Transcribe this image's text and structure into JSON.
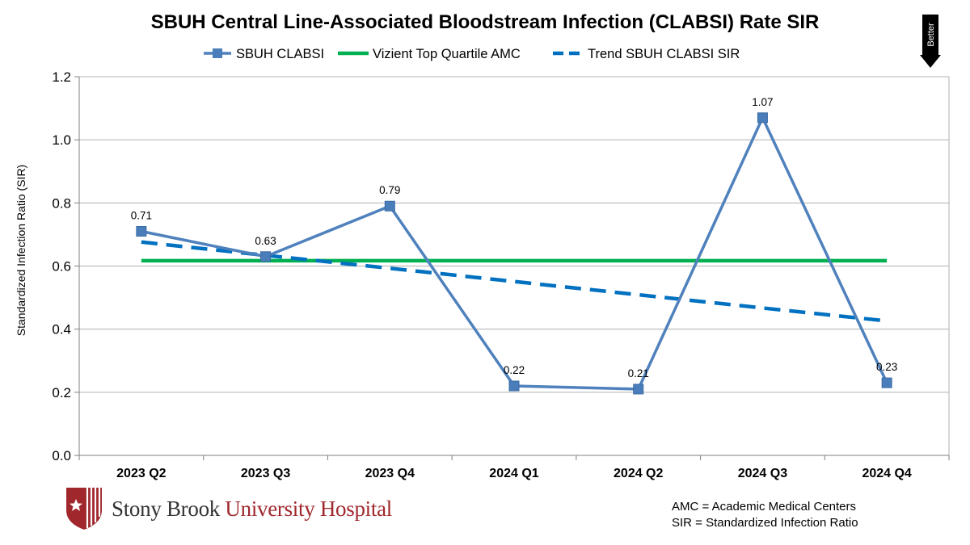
{
  "title": "SBUH Central Line-Associated Bloodstream Infection (CLABSI) Rate SIR",
  "better_label": "Better",
  "legend": {
    "series": "SBUH CLABSI",
    "benchmark": "Vizient Top Quartile AMC",
    "trend": "Trend SBUH CLABSI SIR"
  },
  "footnotes": [
    "AMC = Academic Medical Centers",
    "SIR = Standardized Infection Ratio"
  ],
  "logo": {
    "part1": "Stony Brook ",
    "part2": "University Hospital"
  },
  "colors": {
    "series": "#4f81bd",
    "series_marker": "#4a7ebb",
    "benchmark": "#00b050",
    "trend": "#0070c0",
    "brand_red": "#a0282d"
  },
  "chart_data": {
    "type": "line",
    "title": "SBUH Central Line-Associated Bloodstream Infection (CLABSI) Rate SIR",
    "xlabel": "",
    "ylabel": "Standardized Infection Ratio (SIR)",
    "categories": [
      "2023 Q2",
      "2023 Q3",
      "2023 Q4",
      "2024 Q1",
      "2024 Q2",
      "2024 Q3",
      "2024 Q4"
    ],
    "ylim": [
      0,
      1.2
    ],
    "yticks": [
      "0.0",
      "0.2",
      "0.4",
      "0.6",
      "0.8",
      "1.0",
      "1.2"
    ],
    "series": [
      {
        "name": "SBUH CLABSI",
        "values": [
          0.71,
          0.63,
          0.79,
          0.22,
          0.21,
          1.07,
          0.23
        ],
        "labels": [
          "0.71",
          "0.63",
          "0.79",
          "0.22",
          "0.21",
          "1.07",
          "0.23"
        ]
      },
      {
        "name": "Vizient Top Quartile AMC",
        "values": [
          0.617,
          0.617,
          0.617,
          0.617,
          0.617,
          0.617,
          0.617
        ]
      },
      {
        "name": "Trend SBUH CLABSI SIR",
        "values": [
          0.676,
          0.634,
          0.593,
          0.551,
          0.509,
          0.467,
          0.426
        ]
      }
    ],
    "grid": true,
    "legend_position": "top"
  }
}
